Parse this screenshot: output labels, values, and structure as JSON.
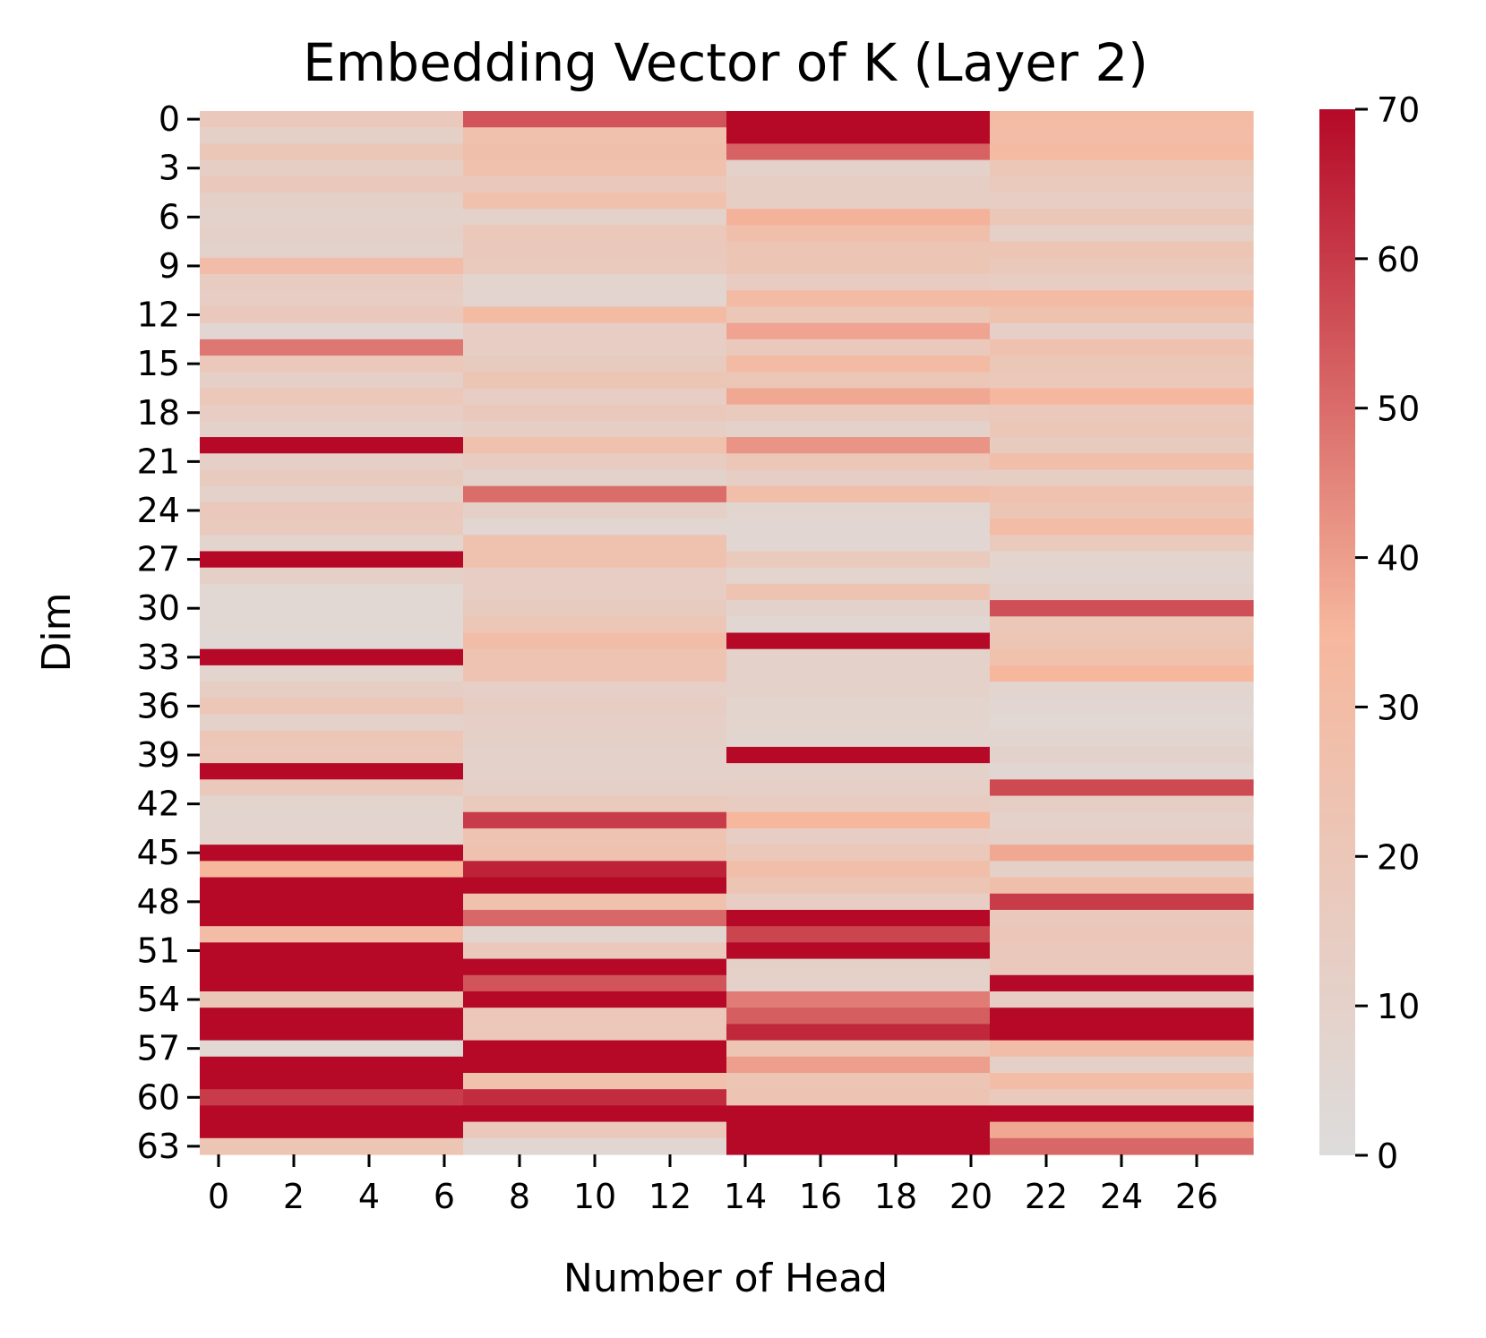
{
  "chart_data": {
    "type": "heatmap",
    "title": "Embedding Vector of K (Layer 2)",
    "xlabel": "Number of Head",
    "ylabel": "Dim",
    "x_tick_labels": [
      "0",
      "2",
      "4",
      "6",
      "8",
      "10",
      "12",
      "14",
      "16",
      "18",
      "20",
      "22",
      "24",
      "26"
    ],
    "y_tick_labels": [
      "0",
      "3",
      "6",
      "9",
      "12",
      "15",
      "18",
      "21",
      "24",
      "27",
      "30",
      "33",
      "36",
      "39",
      "42",
      "45",
      "48",
      "51",
      "54",
      "57",
      "60",
      "63"
    ],
    "colorbar": {
      "ticks": [
        "0",
        "10",
        "20",
        "30",
        "40",
        "50",
        "60",
        "70"
      ],
      "range": [
        0,
        70
      ],
      "colors": [
        "#dddcdc",
        "#f6b79d",
        "#b50927"
      ]
    },
    "num_heads": 28,
    "num_dims": 64,
    "head_groups": [
      {
        "heads": [
          0,
          6
        ],
        "values": [
          18,
          11,
          20,
          13,
          18,
          11,
          9,
          11,
          9,
          29,
          15,
          14,
          18,
          6,
          48,
          19,
          12,
          19,
          14,
          10,
          70,
          12,
          16,
          10,
          18,
          17,
          8,
          70,
          11,
          5,
          5,
          5,
          4,
          70,
          8,
          13,
          21,
          10,
          21,
          19,
          70,
          18,
          8,
          7,
          8,
          70,
          35,
          70,
          70,
          70,
          30,
          70,
          70,
          70,
          20,
          70,
          70,
          5,
          70,
          70,
          60,
          70,
          70,
          22
        ]
      },
      {
        "heads": [
          7,
          13
        ],
        "values": [
          55,
          26,
          27,
          26,
          18,
          26,
          10,
          19,
          18,
          17,
          8,
          7,
          31,
          14,
          13,
          16,
          22,
          14,
          18,
          13,
          26,
          15,
          9,
          50,
          11,
          6,
          25,
          25,
          14,
          14,
          16,
          21,
          29,
          24,
          24,
          12,
          13,
          12,
          11,
          10,
          10,
          11,
          17,
          60,
          24,
          25,
          65,
          70,
          26,
          51,
          7,
          18,
          70,
          55,
          70,
          19,
          19,
          70,
          70,
          26,
          63,
          70,
          18,
          6
        ]
      },
      {
        "heads": [
          14,
          20
        ],
        "values": [
          70,
          70,
          52,
          10,
          13,
          13,
          36,
          27,
          22,
          22,
          15,
          31,
          20,
          39,
          18,
          31,
          21,
          38,
          17,
          10,
          42,
          21,
          13,
          28,
          7,
          6,
          6,
          17,
          8,
          24,
          9,
          6,
          70,
          10,
          10,
          10,
          8,
          8,
          7,
          70,
          10,
          12,
          15,
          35,
          14,
          19,
          28,
          22,
          14,
          70,
          58,
          70,
          11,
          10,
          47,
          53,
          64,
          22,
          40,
          22,
          23,
          70,
          70,
          70
        ]
      },
      {
        "heads": [
          21,
          27
        ],
        "values": [
          31,
          30,
          32,
          20,
          17,
          13,
          20,
          11,
          22,
          18,
          14,
          31,
          25,
          12,
          25,
          20,
          19,
          34,
          18,
          20,
          16,
          28,
          13,
          25,
          22,
          30,
          17,
          8,
          7,
          9,
          56,
          20,
          22,
          26,
          35,
          7,
          6,
          5,
          7,
          9,
          6,
          57,
          13,
          10,
          12,
          38,
          11,
          27,
          60,
          18,
          21,
          18,
          18,
          70,
          14,
          70,
          70,
          29,
          11,
          30,
          17,
          70,
          38,
          51
        ]
      }
    ]
  }
}
